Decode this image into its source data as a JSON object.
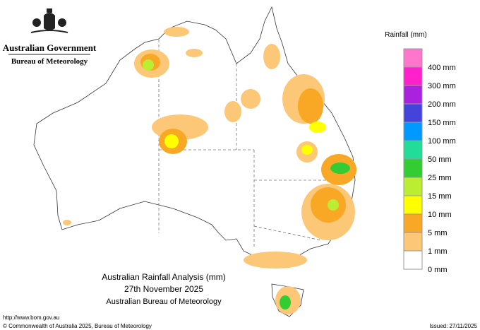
{
  "header": {
    "government": "Australian Government",
    "agency": "Bureau of Meteorology"
  },
  "map_title": {
    "line1": "Australian Rainfall Analysis (mm)",
    "line2": "27th November 2025",
    "line3": "Australian Bureau of Meteorology"
  },
  "legend": {
    "title": "Rainfall (mm)",
    "top_color": "#ff77cc",
    "items": [
      {
        "label": "400 mm",
        "color": "#ff22cc"
      },
      {
        "label": "300 mm",
        "color": "#aa22dd"
      },
      {
        "label": "200 mm",
        "color": "#4444dd"
      },
      {
        "label": "150 mm",
        "color": "#0099ff"
      },
      {
        "label": "100 mm",
        "color": "#22dd99"
      },
      {
        "label": "50 mm",
        "color": "#33cc33"
      },
      {
        "label": "25 mm",
        "color": "#bbee33"
      },
      {
        "label": "15 mm",
        "color": "#ffff00"
      },
      {
        "label": "10 mm",
        "color": "#f9a825"
      },
      {
        "label": "5 mm",
        "color": "#fcc878"
      },
      {
        "label": "1 mm",
        "color": "#ffffff"
      },
      {
        "label": "0 mm",
        "color": "#ffffff"
      }
    ]
  },
  "footer": {
    "url": "http://www.bom.gov.au",
    "copyright": "© Commonwealth of Australia 2025, Bureau of Meteorology",
    "issued": "Issued: 27/11/2025"
  }
}
